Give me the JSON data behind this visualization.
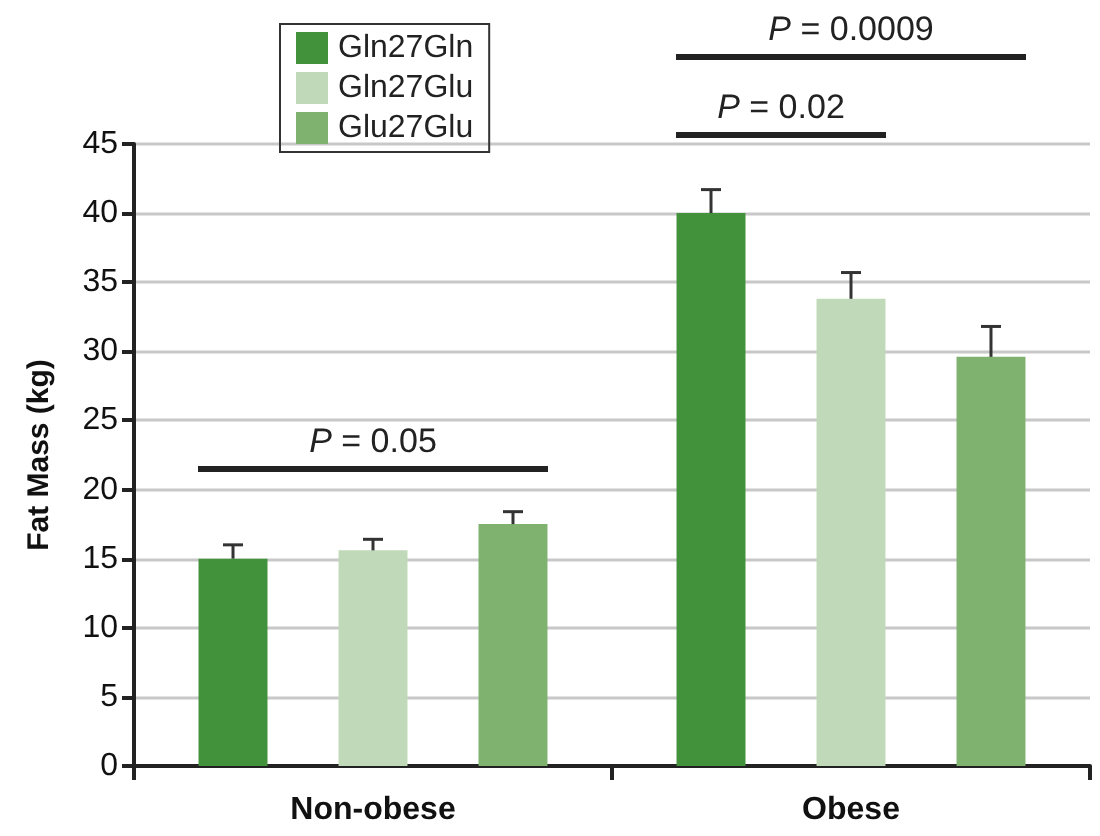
{
  "chart_data": {
    "type": "bar",
    "ylabel": "Fat Mass (kg)",
    "categories": [
      "Non-obese",
      "Obese"
    ],
    "series": [
      {
        "name": "Gln27Gln",
        "color": "#41923a",
        "values": [
          15.0,
          40.0
        ],
        "errors": [
          [
            15.0,
            16.0
          ],
          [
            40.0,
            41.7
          ]
        ]
      },
      {
        "name": "Gln27Glu",
        "color": "#c0d9b8",
        "values": [
          15.6,
          33.8
        ],
        "errors": [
          [
            15.6,
            16.4
          ],
          [
            33.8,
            35.7
          ]
        ]
      },
      {
        "name": "Glu27Glu",
        "color": "#7fb26f",
        "values": [
          17.5,
          29.6
        ],
        "errors": [
          [
            17.5,
            18.4
          ],
          [
            29.6,
            31.8
          ]
        ]
      }
    ],
    "ylim": [
      0,
      45
    ],
    "yticks": [
      0,
      5,
      10,
      15,
      20,
      25,
      30,
      35,
      40,
      45
    ],
    "grid": "y",
    "legend": "top left",
    "annotations": [
      "P = 0.05",
      "P = 0.02",
      "P = 0.0009"
    ]
  }
}
